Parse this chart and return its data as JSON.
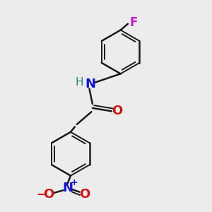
{
  "background_color": "#ececec",
  "bond_color": "#1a1a1a",
  "N_color": "#1414cc",
  "O_color": "#cc1414",
  "F_color": "#cc14cc",
  "H_color": "#2a8080",
  "figsize": [
    3.0,
    3.0
  ],
  "dpi": 100,
  "xlim": [
    0,
    10
  ],
  "ylim": [
    0,
    10
  ]
}
